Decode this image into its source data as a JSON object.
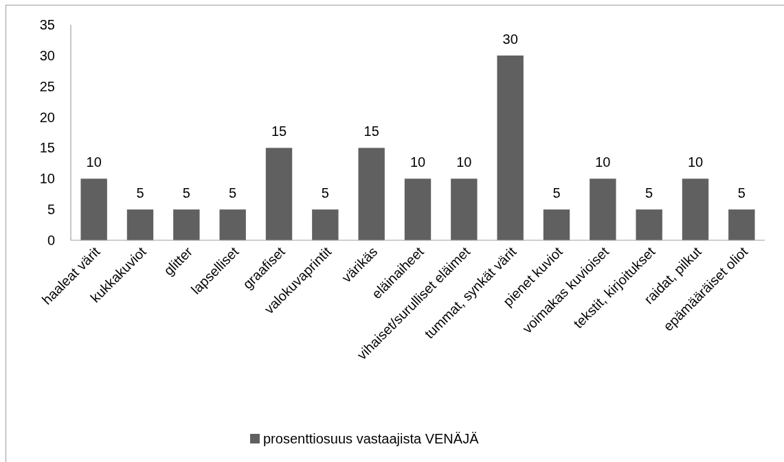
{
  "chart_data": {
    "type": "bar",
    "categories": [
      "haaleat värit",
      "kukkakuviot",
      "glitter",
      "lapselliset",
      "graafiset",
      "valokuvaprintit",
      "värikäs",
      "eläinaiheet",
      "vihaiset/surulliset eläimet",
      "tummat, synkät värit",
      "pienet kuviot",
      "voimakas kuvioiset",
      "tekstit, kirjoitukset",
      "raidat, pilkut",
      "epämääräiset oliot"
    ],
    "series": [
      {
        "name": "prosenttiosuus vastaajista VENÄJÄ",
        "color": "#606060",
        "values": [
          10,
          5,
          5,
          5,
          15,
          5,
          15,
          10,
          10,
          30,
          5,
          10,
          5,
          10,
          5
        ]
      }
    ],
    "ylim": [
      0,
      35
    ],
    "yticks": [
      0,
      5,
      10,
      15,
      20,
      25,
      30,
      35
    ],
    "data_labels": true,
    "legend": "bottom"
  }
}
